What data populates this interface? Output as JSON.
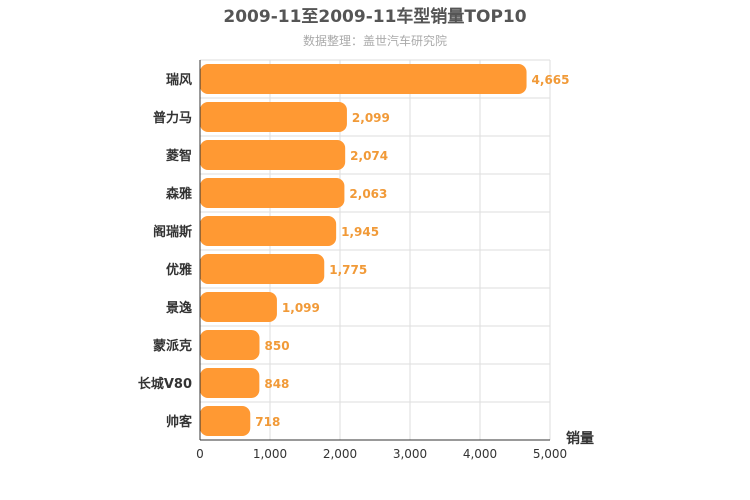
{
  "chart_data": {
    "type": "bar",
    "orientation": "horizontal",
    "title": "2009-11至2009-11车型销量TOP10",
    "subtitle": "数据整理：盖世汽车研究院",
    "xlabel": "销量",
    "ylabel": "",
    "xlim": [
      0,
      5000
    ],
    "x_ticks": [
      "0",
      "1,000",
      "2,000",
      "3,000",
      "4,000",
      "5,000"
    ],
    "categories": [
      "瑞风",
      "普力马",
      "菱智",
      "森雅",
      "阁瑞斯",
      "优雅",
      "景逸",
      "蒙派克",
      "长城V80",
      "帅客"
    ],
    "values": [
      4665,
      2099,
      2074,
      2063,
      1945,
      1775,
      1099,
      850,
      848,
      718
    ],
    "value_labels": [
      "4,665",
      "2,099",
      "2,074",
      "2,063",
      "1,945",
      "1,775",
      "1,099",
      "850",
      "848",
      "718"
    ],
    "grid": true,
    "bar_color": "#ff9933",
    "label_color": "#f19a38"
  }
}
